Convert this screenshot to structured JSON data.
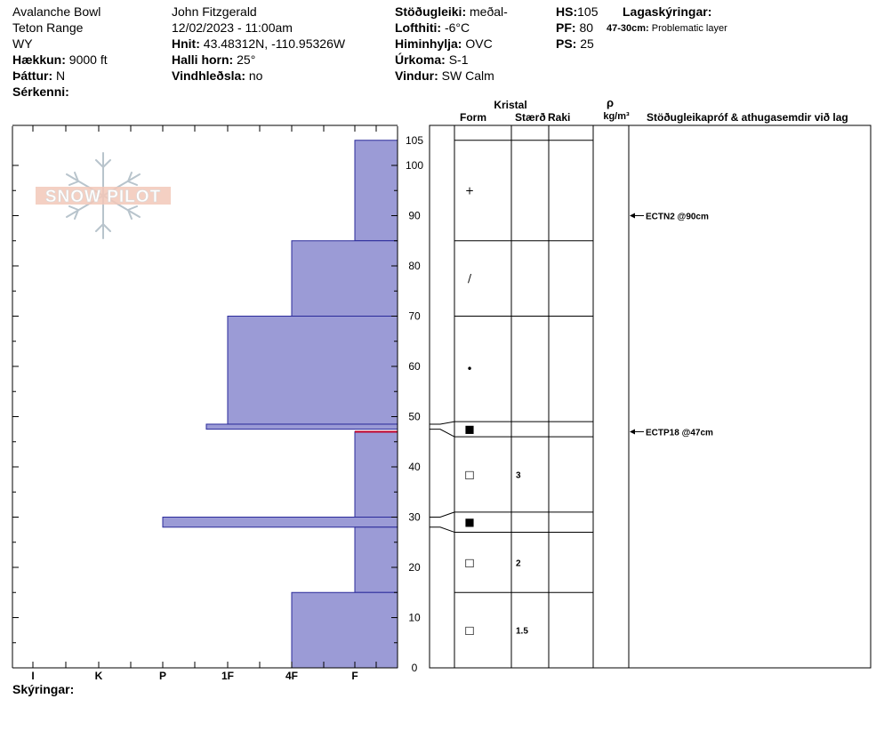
{
  "header": {
    "col1": [
      "Avalanche Bowl",
      "Teton Range",
      "WY"
    ],
    "elevation_label": "Hækkun:",
    "elevation_value": "9000 ft",
    "aspect_label": "Þáttur:",
    "aspect_value": "N",
    "features_label": "Sérkenni:",
    "observer": "John Fitzgerald",
    "datetime": "12/02/2023 - 11:00am",
    "coords_label": "Hnit:",
    "coords_value": "43.48312N, -110.95326W",
    "slope_label": "Halli horn:",
    "slope_value": "25°",
    "wind_loading_label": "Vindhleðsla:",
    "wind_loading_value": "no",
    "stability_label": "Stöðugleiki:",
    "stability_value": "meðal-",
    "air_temp_label": "Lofthiti:",
    "air_temp_value": "-6°C",
    "sky_label": "Himinhylja:",
    "sky_value": "OVC",
    "precip_label": "Úrkoma:",
    "precip_value": "S-1",
    "wind_label": "Vindur:",
    "wind_value": "SW Calm",
    "hs_label": "HS:",
    "hs_value": "105",
    "pf_label": "PF:",
    "pf_value": "80",
    "ps_label": "PS:",
    "ps_value": "25",
    "layer_notes_label": "Lagaskýringar:",
    "layer_note_range": "47-30cm:",
    "layer_note_text": "Problematic layer"
  },
  "logo_text": "SNOW PILOT",
  "legend_label": "Skýringar:",
  "columns": {
    "crystal": "Kristal",
    "form": "Form",
    "size": "Stærð",
    "moisture": "Raki",
    "rho": "ρ",
    "density_unit": "kg/m³",
    "tests": "Stöðugleikapróf & athugasemdir við lag"
  },
  "colors": {
    "hardness_fill": "#9b9bd6",
    "hardness_stroke": "#2a2a9a",
    "problem_line": "#c0002a"
  },
  "chart_data": {
    "type": "bar",
    "y_range": [
      0,
      105
    ],
    "hardness_scale": [
      "I",
      "K",
      "P",
      "1F",
      "4F",
      "F"
    ],
    "y_ticks": [
      0,
      10,
      20,
      30,
      40,
      50,
      60,
      70,
      80,
      90,
      100,
      105
    ],
    "hardness_profile": [
      {
        "top": 105,
        "bottom": 85,
        "hardness": "F"
      },
      {
        "top": 85,
        "bottom": 70,
        "hardness": "4F"
      },
      {
        "top": 70,
        "bottom": 48.5,
        "hardness": "1F+"
      },
      {
        "top": 48.5,
        "bottom": 47.5,
        "hardness": "P+"
      },
      {
        "top": 47,
        "bottom": 30,
        "hardness": "F"
      },
      {
        "top": 30,
        "bottom": 28,
        "hardness": "P"
      },
      {
        "top": 28,
        "bottom": 15,
        "hardness": "F"
      },
      {
        "top": 15,
        "bottom": 0,
        "hardness": "4F"
      }
    ],
    "layers": [
      {
        "top": 105,
        "bottom": 85,
        "form": "+",
        "size": ""
      },
      {
        "top": 85,
        "bottom": 70,
        "form": "/",
        "size": ""
      },
      {
        "top": 70,
        "bottom": 49,
        "form": "•",
        "size": ""
      },
      {
        "top": 49,
        "bottom": 46,
        "form": "■",
        "size": ""
      },
      {
        "top": 46,
        "bottom": 31,
        "form": "□",
        "size": "3"
      },
      {
        "top": 31,
        "bottom": 27,
        "form": "■",
        "size": ""
      },
      {
        "top": 27,
        "bottom": 15,
        "form": "□",
        "size": "2"
      },
      {
        "top": 15,
        "bottom": 0,
        "form": "□",
        "size": "1.5"
      }
    ],
    "problem_layer_depth": 47,
    "tests": [
      {
        "depth": 90,
        "text": "ECTN2 @90cm"
      },
      {
        "depth": 47,
        "text": "ECTP18 @47cm"
      }
    ]
  }
}
